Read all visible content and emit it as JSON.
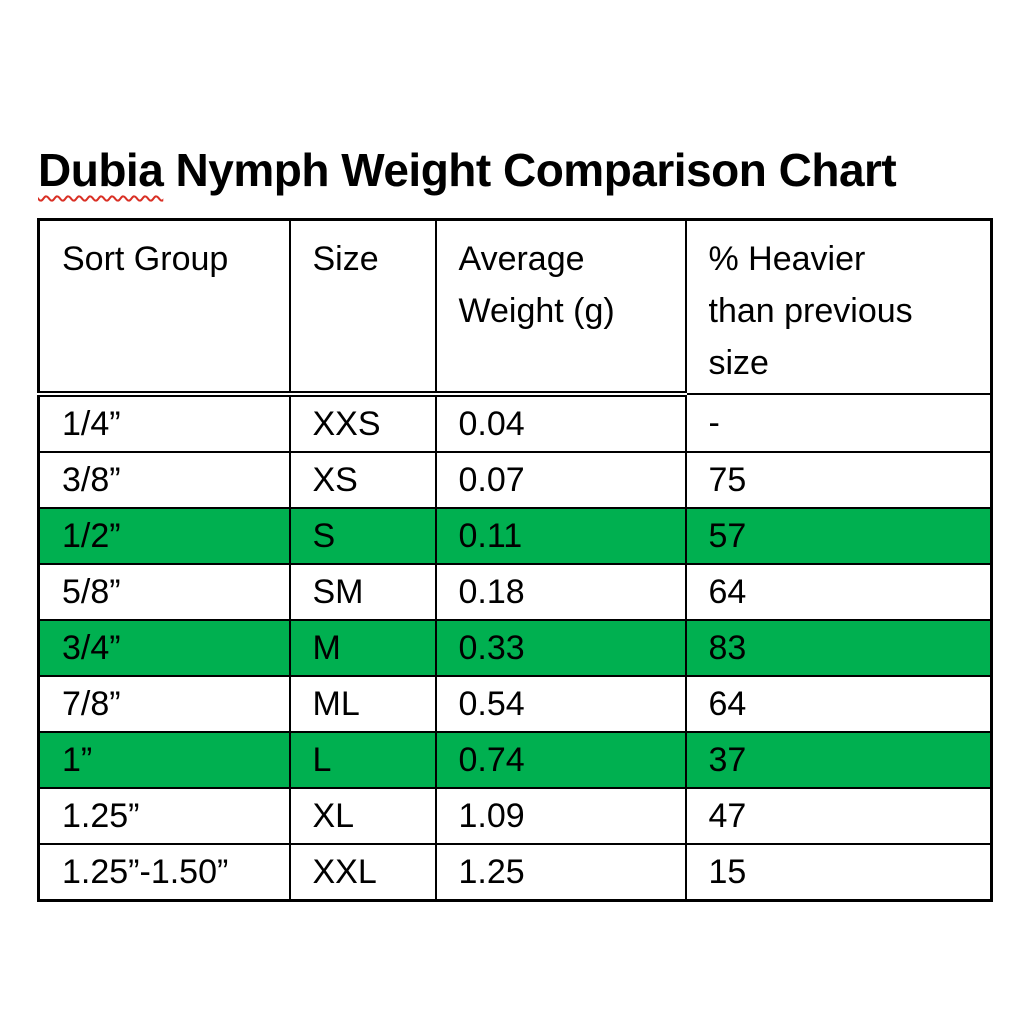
{
  "title": {
    "misspelled_word": "Dubia",
    "rest": " Nymph Weight Comparison Chart",
    "full": "Dubia Nymph Weight Comparison Chart"
  },
  "table": {
    "header_display": [
      "Sort Group",
      "Size",
      "Average\nWeight (g)",
      "% Heavier\nthan previous\nsize"
    ],
    "column_keys": [
      "sort-group",
      "size",
      "average-weight",
      "pct-heavier"
    ]
  },
  "chart_data": {
    "type": "table",
    "title": "Dubia Nymph Weight Comparison Chart",
    "columns": [
      "Sort Group",
      "Size",
      "Average Weight (g)",
      "% Heavier than previous size"
    ],
    "rows": [
      [
        "1/4”",
        "XXS",
        "0.04",
        "-"
      ],
      [
        "3/8”",
        "XS",
        "0.07",
        "75"
      ],
      [
        "1/2”",
        "S",
        "0.11",
        "57"
      ],
      [
        "5/8”",
        "SM",
        "0.18",
        "64"
      ],
      [
        "3/4”",
        "M",
        "0.33",
        "83"
      ],
      [
        "7/8”",
        "ML",
        "0.54",
        "64"
      ],
      [
        "1”",
        "L",
        "0.74",
        "37"
      ],
      [
        "1.25”",
        "XL",
        "1.09",
        "47"
      ],
      [
        "1.25”-1.50”",
        "XXL",
        "1.25",
        "15"
      ]
    ],
    "highlighted_row_indices": [
      2,
      4,
      6
    ],
    "layout": "single table, header row with double rule beneath first three columns, single rule beneath last column"
  },
  "colors": {
    "background": "#FFFFFF",
    "text": "#000000",
    "border": "#000000",
    "row_highlight_green": "#00B050",
    "spellcheck_squiggle_red": "#D93025"
  }
}
